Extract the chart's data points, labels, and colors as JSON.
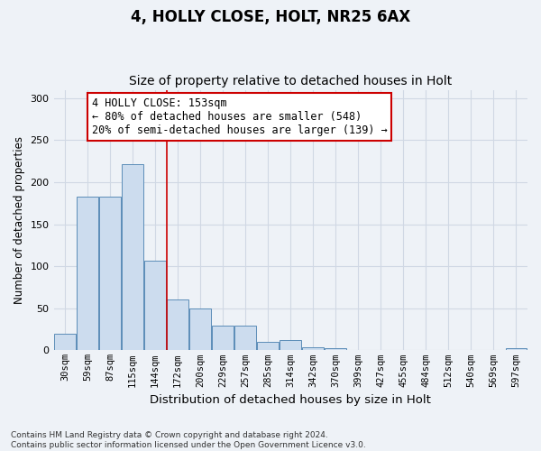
{
  "title1": "4, HOLLY CLOSE, HOLT, NR25 6AX",
  "title2": "Size of property relative to detached houses in Holt",
  "xlabel": "Distribution of detached houses by size in Holt",
  "ylabel": "Number of detached properties",
  "footnote": "Contains HM Land Registry data © Crown copyright and database right 2024.\nContains public sector information licensed under the Open Government Licence v3.0.",
  "tick_labels": [
    "30sqm",
    "59sqm",
    "87sqm",
    "115sqm",
    "144sqm",
    "172sqm",
    "200sqm",
    "229sqm",
    "257sqm",
    "285sqm",
    "314sqm",
    "342sqm",
    "370sqm",
    "399sqm",
    "427sqm",
    "455sqm",
    "484sqm",
    "512sqm",
    "540sqm",
    "569sqm",
    "597sqm"
  ],
  "bar_heights": [
    20,
    183,
    183,
    222,
    107,
    60,
    50,
    29,
    29,
    10,
    12,
    4,
    3,
    0,
    0,
    0,
    0,
    0,
    0,
    0,
    3
  ],
  "property_line_bin_index": 4,
  "annotation_text": "4 HOLLY CLOSE: 153sqm\n← 80% of detached houses are smaller (548)\n20% of semi-detached houses are larger (139) →",
  "bar_color": "#ccdcee",
  "bar_edge_color": "#5b8db8",
  "line_color": "#cc0000",
  "annotation_box_edge_color": "#cc0000",
  "bg_color": "#eef2f7",
  "grid_color": "#d0d8e4",
  "ylim": [
    0,
    310
  ],
  "title1_fontsize": 12,
  "title2_fontsize": 10,
  "annotation_fontsize": 8.5,
  "tick_fontsize": 7.5,
  "ylabel_fontsize": 8.5,
  "xlabel_fontsize": 9.5,
  "footnote_fontsize": 6.5
}
